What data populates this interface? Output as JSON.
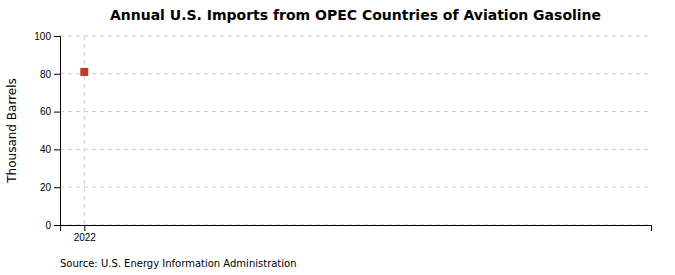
{
  "chart_data": {
    "type": "scatter",
    "title": "Annual U.S. Imports from OPEC Countries of Aviation Gasoline",
    "ylabel": "Thousand Barrels",
    "source": "Source: U.S. Energy Information Administration",
    "x": [
      2022
    ],
    "values": [
      81
    ],
    "color": "#c0392b",
    "marker": "square",
    "xlim": [
      2021.7,
      2029
    ],
    "ylim": [
      0,
      100
    ],
    "xticks": [
      2022
    ],
    "yticks": [
      0,
      20,
      40,
      60,
      80,
      100
    ],
    "grid": true
  }
}
